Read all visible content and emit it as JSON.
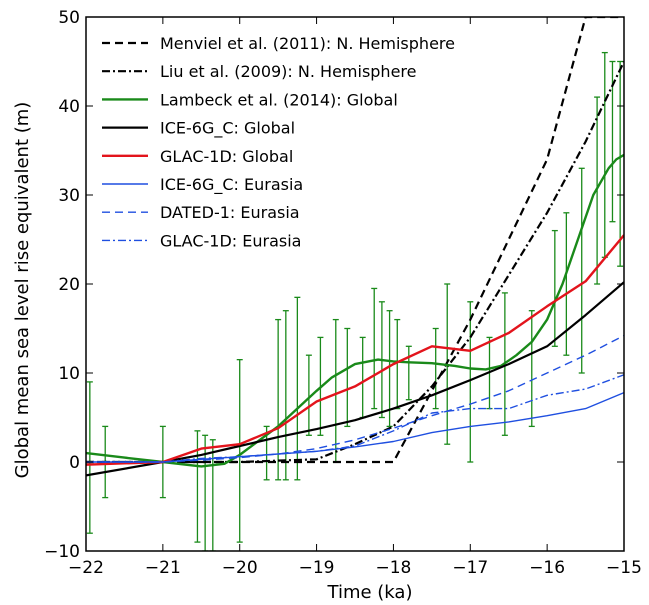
{
  "chart_data": {
    "type": "line",
    "xlabel": "Time (ka)",
    "ylabel": "Global mean sea level rise equivalent (m)",
    "xlim": [
      -22,
      -15
    ],
    "ylim": [
      -10,
      50
    ],
    "xticks": [
      -22,
      -21,
      -20,
      -19,
      -18,
      -17,
      -16,
      -15
    ],
    "yticks": [
      -10,
      0,
      10,
      20,
      30,
      40,
      50
    ],
    "xtick_labels": [
      "−22",
      "−21",
      "−20",
      "−19",
      "−18",
      "−17",
      "−16",
      "−15"
    ],
    "ytick_labels": [
      "−10",
      "0",
      "10",
      "20",
      "30",
      "40",
      "50"
    ],
    "grid": false,
    "legend_position": "top-left",
    "series": [
      {
        "name": "Menviel et al. (2011): N. Hemisphere",
        "color": "#000000",
        "dash": "dashed",
        "width": 2.2,
        "x": [
          -22,
          -21,
          -20.5,
          -19,
          -18,
          -17,
          -16,
          -15.5,
          -15
        ],
        "y": [
          0,
          0,
          0,
          0,
          0,
          16,
          34,
          50,
          50
        ]
      },
      {
        "name": "Liu et al. (2009): N. Hemisphere",
        "color": "#000000",
        "dash": "dashdot",
        "width": 2.2,
        "x": [
          -22,
          -21,
          -20,
          -19,
          -18.5,
          -18,
          -17.5,
          -17,
          -16.5,
          -16,
          -15.5,
          -15
        ],
        "y": [
          0,
          0,
          0,
          0.3,
          2,
          4,
          8.5,
          14,
          21,
          28,
          36,
          45
        ]
      },
      {
        "name": "Lambeck et al. (2014): Global",
        "color": "#1a8a1a",
        "dash": "solid",
        "width": 2.4,
        "x": [
          -22,
          -21.5,
          -21,
          -20.5,
          -20.2,
          -20,
          -19.5,
          -19,
          -18.8,
          -18.5,
          -18.2,
          -18,
          -17.8,
          -17.5,
          -17.2,
          -17,
          -16.8,
          -16.6,
          -16.4,
          -16.2,
          -16,
          -15.8,
          -15.6,
          -15.4,
          -15.2,
          -15.1,
          -15
        ],
        "y": [
          1,
          0.5,
          0,
          -0.5,
          -0.2,
          0.8,
          4,
          8,
          9.5,
          11,
          11.5,
          11.3,
          11.2,
          11.1,
          10.8,
          10.5,
          10.4,
          10.8,
          12,
          13.5,
          16,
          20,
          25,
          30,
          33,
          34,
          34.5
        ]
      },
      {
        "name": "ICE-6G_C: Global",
        "color": "#000000",
        "dash": "solid",
        "width": 2.2,
        "x": [
          -22,
          -21,
          -20.5,
          -20,
          -19.5,
          -19,
          -18.5,
          -18,
          -17.5,
          -17,
          -16.5,
          -16,
          -15.5,
          -15
        ],
        "y": [
          -1.5,
          0,
          0.8,
          1.8,
          2.8,
          3.7,
          4.7,
          6,
          7.5,
          9.2,
          11,
          13,
          16.5,
          20.2
        ]
      },
      {
        "name": "GLAC-1D: Global",
        "color": "#e3141c",
        "dash": "solid",
        "width": 2.4,
        "x": [
          -22,
          -21,
          -20.5,
          -20,
          -19.5,
          -19,
          -18.5,
          -18,
          -17.5,
          -17,
          -16.5,
          -16,
          -15.5,
          -15
        ],
        "y": [
          -0.3,
          0,
          1.5,
          2,
          3.8,
          6.8,
          8.5,
          11,
          13,
          12.5,
          14.5,
          17.5,
          20.3,
          25.5
        ]
      },
      {
        "name": "ICE-6G_C: Eurasia",
        "color": "#1f4fe0",
        "dash": "solid",
        "width": 1.4,
        "x": [
          -22,
          -21,
          -20.5,
          -20,
          -19.5,
          -19,
          -18.5,
          -18,
          -17.5,
          -17,
          -16.5,
          -16,
          -15.5,
          -15
        ],
        "y": [
          0,
          0,
          0.3,
          0.6,
          0.9,
          1.2,
          1.7,
          2.3,
          3.3,
          4,
          4.5,
          5.2,
          6,
          7.8
        ]
      },
      {
        "name": "DATED-1: Eurasia",
        "color": "#1f4fe0",
        "dash": "dashed",
        "width": 1.4,
        "x": [
          -22,
          -21,
          -20.5,
          -20,
          -19.5,
          -19,
          -18.5,
          -18,
          -17.5,
          -17,
          -16.5,
          -16,
          -15.5,
          -15
        ],
        "y": [
          0,
          0,
          0.2,
          0.5,
          0.9,
          1.5,
          2.5,
          3.8,
          5.2,
          6.5,
          8,
          10,
          12,
          14.2
        ]
      },
      {
        "name": "GLAC-1D: Eurasia",
        "color": "#1f4fe0",
        "dash": "dashdot",
        "width": 1.4,
        "x": [
          -22,
          -21,
          -20.5,
          -20,
          -19.5,
          -19,
          -18.5,
          -18,
          -17.5,
          -17,
          -16.5,
          -16,
          -15.5,
          -15
        ],
        "y": [
          0,
          0,
          0.4,
          0.6,
          0.9,
          1.2,
          1.8,
          3.5,
          5.5,
          6,
          6,
          7.5,
          8.2,
          9.8
        ]
      }
    ],
    "error_bars": {
      "series": "Lambeck et al. (2014): Global",
      "color": "#1a8a1a",
      "points": [
        {
          "x": -21.95,
          "y": 0.5,
          "lo": -8,
          "hi": 9
        },
        {
          "x": -21.75,
          "y": 0,
          "lo": -4,
          "hi": 4
        },
        {
          "x": -21.0,
          "y": 0,
          "lo": -4,
          "hi": 4
        },
        {
          "x": -20.55,
          "y": -0.5,
          "lo": -9,
          "hi": 3.5
        },
        {
          "x": -20.45,
          "y": -0.2,
          "lo": -10,
          "hi": 3
        },
        {
          "x": -20.35,
          "y": 0.2,
          "lo": -10,
          "hi": 2.5
        },
        {
          "x": -20.0,
          "y": 2,
          "lo": -9,
          "hi": 11.5
        },
        {
          "x": -19.65,
          "y": 2.5,
          "lo": -2,
          "hi": 4
        },
        {
          "x": -19.5,
          "y": 4,
          "lo": -2,
          "hi": 16
        },
        {
          "x": -19.4,
          "y": 5,
          "lo": -2,
          "hi": 17
        },
        {
          "x": -19.25,
          "y": 6,
          "lo": -2,
          "hi": 18.5
        },
        {
          "x": -19.1,
          "y": 7.5,
          "lo": 3,
          "hi": 12
        },
        {
          "x": -18.95,
          "y": 8.5,
          "lo": 3,
          "hi": 14
        },
        {
          "x": -18.75,
          "y": 10,
          "lo": 0,
          "hi": 16
        },
        {
          "x": -18.6,
          "y": 10.5,
          "lo": 4,
          "hi": 15
        },
        {
          "x": -18.4,
          "y": 11,
          "lo": 5,
          "hi": 14
        },
        {
          "x": -18.25,
          "y": 11.5,
          "lo": 6,
          "hi": 19.5
        },
        {
          "x": -18.15,
          "y": 11.5,
          "lo": 5,
          "hi": 18
        },
        {
          "x": -18.05,
          "y": 11.5,
          "lo": 4,
          "hi": 17
        },
        {
          "x": -17.95,
          "y": 11.3,
          "lo": 6,
          "hi": 16
        },
        {
          "x": -17.8,
          "y": 11.2,
          "lo": 7,
          "hi": 13
        },
        {
          "x": -17.45,
          "y": 11,
          "lo": 6,
          "hi": 15
        },
        {
          "x": -17.3,
          "y": 10.8,
          "lo": 2,
          "hi": 20
        },
        {
          "x": -17.0,
          "y": 10.5,
          "lo": 0,
          "hi": 18
        },
        {
          "x": -16.75,
          "y": 10.5,
          "lo": 6,
          "hi": 14
        },
        {
          "x": -16.55,
          "y": 11,
          "lo": 3,
          "hi": 19
        },
        {
          "x": -16.2,
          "y": 13.5,
          "lo": 4,
          "hi": 17
        },
        {
          "x": -15.9,
          "y": 18,
          "lo": 13,
          "hi": 26
        },
        {
          "x": -15.75,
          "y": 20,
          "lo": 12,
          "hi": 28
        },
        {
          "x": -15.55,
          "y": 25,
          "lo": 10,
          "hi": 33
        },
        {
          "x": -15.35,
          "y": 30,
          "lo": 20,
          "hi": 41
        },
        {
          "x": -15.25,
          "y": 33,
          "lo": 23,
          "hi": 46
        },
        {
          "x": -15.15,
          "y": 34,
          "lo": 27,
          "hi": 45
        },
        {
          "x": -15.05,
          "y": 34.5,
          "lo": 22,
          "hi": 45
        }
      ]
    }
  }
}
